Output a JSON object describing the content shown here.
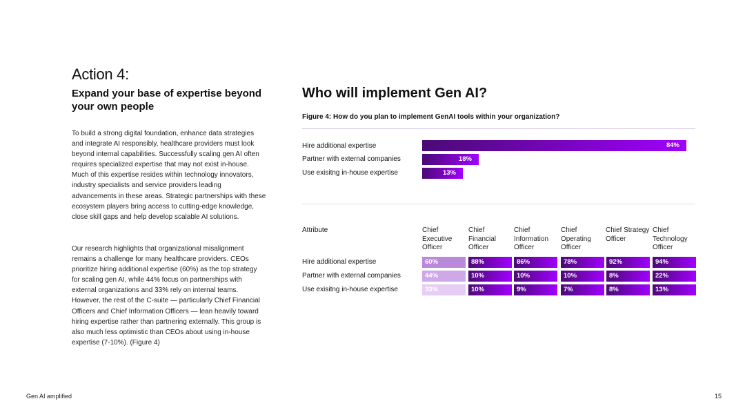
{
  "action": {
    "title": "Action 4:",
    "subtitle": "Expand your base of expertise beyond your own people",
    "paragraphs": [
      "To build a strong digital foundation, enhance data strategies and integrate AI responsibly, healthcare providers must look beyond internal capabilities. Successfully scaling gen AI often requires specialized expertise that may not exist in-house. Much of this expertise resides within technology innovators, industry specialists and service providers leading advancements in these areas. Strategic partnerships with these ecosystem players bring access to cutting-edge knowledge, close skill gaps and help develop scalable AI solutions.",
      "Our research highlights that organizational misalignment remains a challenge for many healthcare providers. CEOs prioritize hiring additional expertise (60%) as the top strategy for scaling gen AI, while 44% focus on partnerships with external organizations and 33% rely on internal teams. However, the rest of the C-suite — particularly Chief Financial Officers and Chief Information Officers — lean heavily toward hiring expertise rather than partnering externally. This group is also much less optimistic than CEOs about using in-house expertise (7-10%). (Figure 4)"
    ]
  },
  "main_heading": "Who will implement Gen AI?",
  "figure_caption": "Figure 4: How do you plan to implement GenAI tools within your organization?",
  "chart_data": [
    {
      "type": "bar",
      "orientation": "horizontal",
      "categories": [
        "Hire additional expertise",
        "Partner with external companies",
        "Use exisitng in-house expertise"
      ],
      "values": [
        84,
        18,
        13
      ],
      "value_labels": [
        "84%",
        "18%",
        "13%"
      ],
      "xlim": [
        0,
        100
      ],
      "grid": false
    },
    {
      "type": "heatmap",
      "row_header": "Attribute",
      "columns": [
        "Chief Executive Officer",
        "Chief Financial Officer",
        "Chief Information Officer",
        "Chief Operating Officer",
        "Chief Strategy Officer",
        "Chief Technology Officer"
      ],
      "rows": [
        "Hire additional expertise",
        "Partner with external companies",
        "Use exisitng in-house expertise"
      ],
      "values": [
        [
          60,
          88,
          86,
          78,
          92,
          94
        ],
        [
          44,
          10,
          10,
          10,
          8,
          22
        ],
        [
          33,
          10,
          9,
          7,
          8,
          13
        ]
      ],
      "value_labels": [
        [
          "60%",
          "88%",
          "86%",
          "78%",
          "92%",
          "94%"
        ],
        [
          "44%",
          "10%",
          "10%",
          "10%",
          "8%",
          "22%"
        ],
        [
          "33%",
          "10%",
          "9%",
          "7%",
          "8%",
          "13%"
        ]
      ]
    }
  ],
  "colors": {
    "bar_start": "#4a0a75",
    "bar_end": "#a100ff",
    "ceo_row_1": "#b98ad9",
    "ceo_row_2": "#cfa8e8",
    "ceo_row_3": "#e6cdf5"
  },
  "footer": {
    "title": "Gen AI amplified",
    "page": "15"
  }
}
